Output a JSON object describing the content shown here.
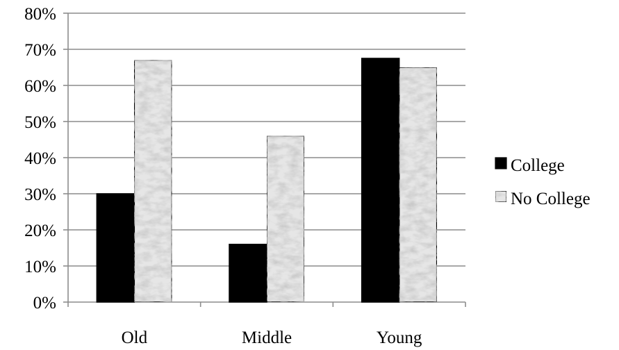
{
  "chart_data": {
    "type": "bar",
    "title": "",
    "xlabel": "",
    "ylabel": "",
    "categories": [
      "Old",
      "Middle",
      "Young"
    ],
    "series": [
      {
        "name": "College",
        "values": [
          30,
          16,
          67.5
        ],
        "color": "#000000"
      },
      {
        "name": "No College",
        "values": [
          67,
          46,
          65
        ],
        "color": "#e6e6e6"
      }
    ],
    "ylim": [
      0,
      80
    ],
    "ytick_step": 10,
    "ytick_format": "percent",
    "grid": true,
    "legend_position": "right"
  }
}
